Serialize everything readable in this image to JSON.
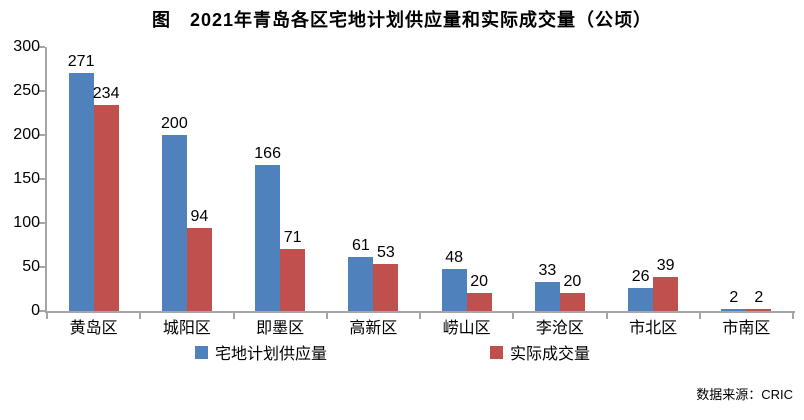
{
  "title": "图　2021年青岛各区宅地计划供应量和实际成交量（公顷）",
  "source": "数据来源：CRIC",
  "colors": {
    "axis": "#a6a6a6",
    "series_supply": "#4f81bd",
    "series_transaction": "#c0504d",
    "text": "#000000",
    "background": "#ffffff"
  },
  "chart_data": {
    "type": "bar",
    "title": "图　2021年青岛各区宅地计划供应量和实际成交量（公顷）",
    "categories": [
      "黄岛区",
      "城阳区",
      "即墨区",
      "高新区",
      "崂山区",
      "李沧区",
      "市北区",
      "市南区"
    ],
    "series": [
      {
        "name": "宅地计划供应量",
        "color": "#4f81bd",
        "values": [
          271,
          200,
          166,
          61,
          48,
          33,
          26,
          2
        ]
      },
      {
        "name": "实际成交量",
        "color": "#c0504d",
        "values": [
          234,
          94,
          71,
          53,
          20,
          20,
          39,
          2
        ]
      }
    ],
    "xlabel": "",
    "ylabel": "",
    "ylim": [
      0,
      300
    ],
    "ytick_step": 50,
    "yticks": [
      0,
      50,
      100,
      150,
      200,
      250,
      300
    ],
    "grid": false,
    "value_labels": true,
    "legend_position": "bottom",
    "footnote": "数据来源：CRIC"
  }
}
